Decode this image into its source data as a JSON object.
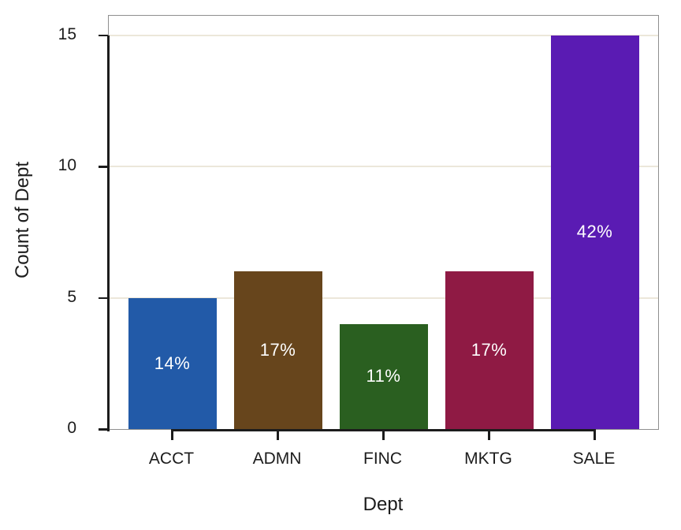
{
  "chart_data": {
    "type": "bar",
    "title": "",
    "xlabel": "Dept",
    "ylabel": "Count of Dept",
    "categories": [
      "ACCT",
      "ADMN",
      "FINC",
      "MKTG",
      "SALE"
    ],
    "values": [
      5,
      6,
      4,
      6,
      15
    ],
    "bar_labels": [
      "14%",
      "17%",
      "11%",
      "17%",
      "42%"
    ],
    "bar_colors": [
      "#225aa8",
      "#67451c",
      "#2a5f20",
      "#8f1a44",
      "#5a1bb3"
    ],
    "yticks": [
      0,
      5,
      10,
      15
    ],
    "ylim": [
      0,
      15.75
    ],
    "grid": true,
    "legend": "none",
    "colors": {
      "gridline": "#ece7da",
      "axis": "#1c1c1c",
      "frame": "#8f8f8f",
      "text": "#1c1c1c",
      "bar_label_text": "#ffffff",
      "background": "#ffffff"
    }
  }
}
